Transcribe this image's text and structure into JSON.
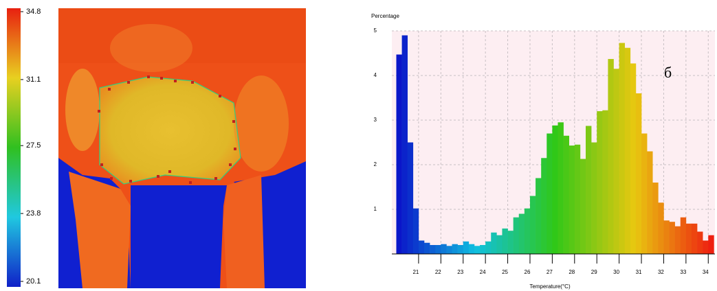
{
  "chart_data": [
    {
      "type": "colorbar",
      "ylim": [
        20.1,
        34.8
      ],
      "yticks": [
        34.8,
        31.1,
        27.5,
        23.8,
        20.1
      ],
      "colors": [
        "#1020c8",
        "#20c8e0",
        "#30c020",
        "#e8d020",
        "#e82010"
      ]
    },
    {
      "type": "histogram",
      "title": "Percentage",
      "x_label": "Temperature(°C)",
      "annotation": "б",
      "bins": [
        20,
        20.25,
        20.5,
        20.75,
        21,
        21.25,
        21.5,
        21.75,
        22,
        22.25,
        22.5,
        22.75,
        23,
        23.25,
        23.5,
        23.75,
        24,
        24.25,
        24.5,
        24.75,
        25,
        25.25,
        25.5,
        25.75,
        26,
        26.25,
        26.5,
        26.75,
        27,
        27.25,
        27.5,
        27.75,
        28,
        28.25,
        28.5,
        28.75,
        29,
        29.25,
        29.5,
        29.75,
        30,
        30.25,
        30.5,
        30.75,
        31,
        31.25,
        31.5,
        31.75,
        32,
        32.25,
        32.5,
        32.75,
        33,
        33.25,
        33.5,
        33.75,
        34,
        34.25
      ],
      "counts": [
        4.47,
        4.9,
        2.5,
        1.02,
        0.3,
        0.25,
        0.2,
        0.2,
        0.22,
        0.18,
        0.22,
        0.2,
        0.28,
        0.22,
        0.18,
        0.2,
        0.28,
        0.48,
        0.42,
        0.57,
        0.52,
        0.82,
        0.9,
        1.02,
        1.3,
        1.7,
        2.15,
        2.7,
        2.88,
        2.95,
        2.65,
        2.43,
        2.45,
        2.13,
        2.87,
        2.5,
        3.2,
        3.22,
        4.37,
        4.15,
        4.73,
        4.62,
        4.27,
        3.6,
        2.7,
        2.3,
        1.6,
        1.15,
        0.75,
        0.72,
        0.62,
        0.82,
        0.68,
        0.68,
        0.5,
        0.3,
        0.42
      ],
      "colormap": [
        "#0a10c8",
        "#10c0e0",
        "#30c818",
        "#e8c810",
        "#ee1a10"
      ],
      "xlim": [
        19.8,
        34.3
      ],
      "ylim": [
        0,
        5
      ],
      "xticks": [
        21,
        22,
        23,
        24,
        25,
        26,
        27,
        28,
        29,
        30,
        31,
        32,
        33,
        34
      ],
      "yticks": [
        1,
        2,
        3,
        4,
        5
      ],
      "grid": true
    }
  ]
}
